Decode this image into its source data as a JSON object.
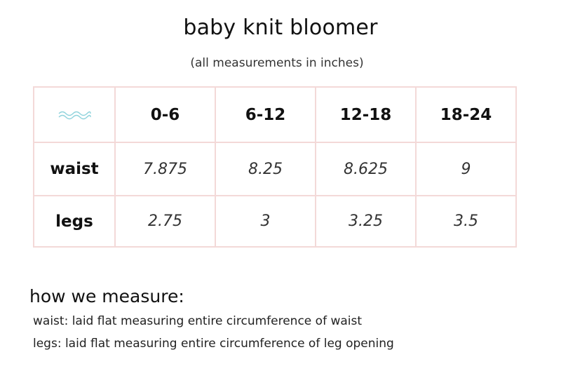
{
  "title": "baby knit bloomer",
  "subtitle": "(all measurements in inches)",
  "table": {
    "corner_icon": "wave-icon",
    "columns": [
      "0-6",
      "6-12",
      "12-18",
      "18-24"
    ],
    "rows": [
      {
        "label": "waist",
        "values": [
          "7.875",
          "8.25",
          "8.625",
          "9"
        ]
      },
      {
        "label": "legs",
        "values": [
          "2.75",
          "3",
          "3.25",
          "3.5"
        ]
      }
    ]
  },
  "how_we_measure": {
    "heading": "how we measure:",
    "lines": [
      "waist: laid flat measuring entire circumference of waist",
      "legs: laid flat measuring entire circumference of leg opening"
    ]
  },
  "colors": {
    "grid": "#f3d9d8",
    "wave": "#8fd3dc"
  }
}
